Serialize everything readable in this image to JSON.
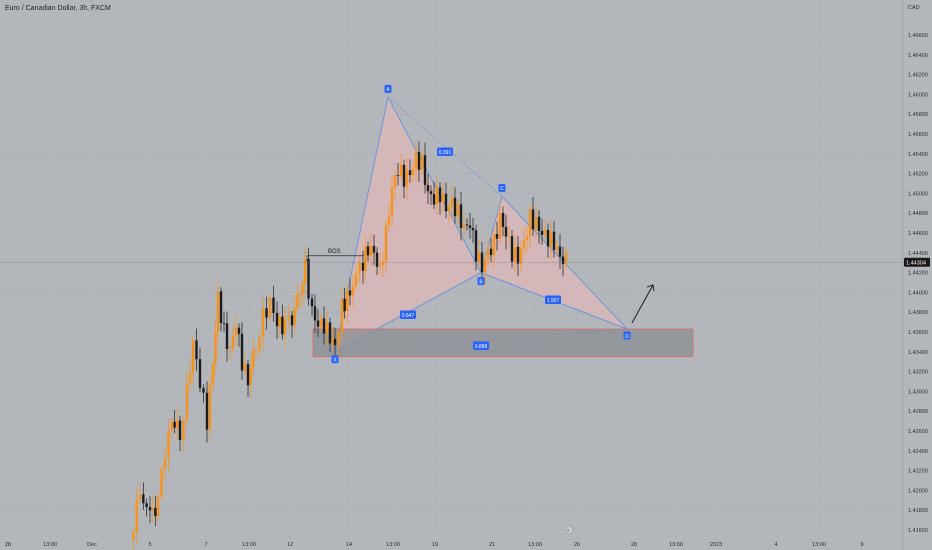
{
  "header": {
    "symbol_title": "Euro / Canadian Dollar, 3h, FXCM"
  },
  "chart_data": {
    "type": "candlestick",
    "title": "Euro / Canadian Dollar, 3h, FXCM",
    "price_axis_unit": "CAD",
    "ylim": [
      1.415,
      1.47
    ],
    "y_ticks": [
      "1.46600",
      "1.46400",
      "1.46200",
      "1.46000",
      "1.45800",
      "1.45600",
      "1.45400",
      "1.45200",
      "1.45000",
      "1.44800",
      "1.44600",
      "1.44400",
      "1.44200",
      "1.44000",
      "1.43800",
      "1.43600",
      "1.43400",
      "1.43200",
      "1.43000",
      "1.42800",
      "1.42600",
      "1.42400",
      "1.42200",
      "1.42000",
      "1.41800",
      "1.41600"
    ],
    "x_ticks": [
      "28",
      "13:00",
      "Dec",
      "5",
      "7",
      "13:00",
      "12",
      "14",
      "13:00",
      "19",
      "21",
      "13:00",
      "26",
      "28",
      "13:00",
      "2023",
      "4",
      "13:00",
      "9"
    ],
    "current_price_label": "1.44304",
    "current_price": 1.44304,
    "colors": {
      "up": "#f7931a",
      "down": "#1c1c1c",
      "pattern_fill": "#e8b8b8",
      "pattern_line": "#4a90e2",
      "zone_fill": "#8a8d92",
      "zone_border": "#e06060",
      "label_bg": "#2962ff"
    },
    "annotations": {
      "bos": "BOS",
      "points": [
        {
          "label": "X",
          "price": 1.434
        },
        {
          "label": "A",
          "price": 1.4597
        },
        {
          "label": "B",
          "price": 1.442
        },
        {
          "label": "C",
          "price": 1.4497
        },
        {
          "label": "D",
          "price": 1.4363
        }
      ],
      "ratios": [
        "0.647",
        "0.391",
        "1.957",
        "0.888"
      ]
    }
  }
}
